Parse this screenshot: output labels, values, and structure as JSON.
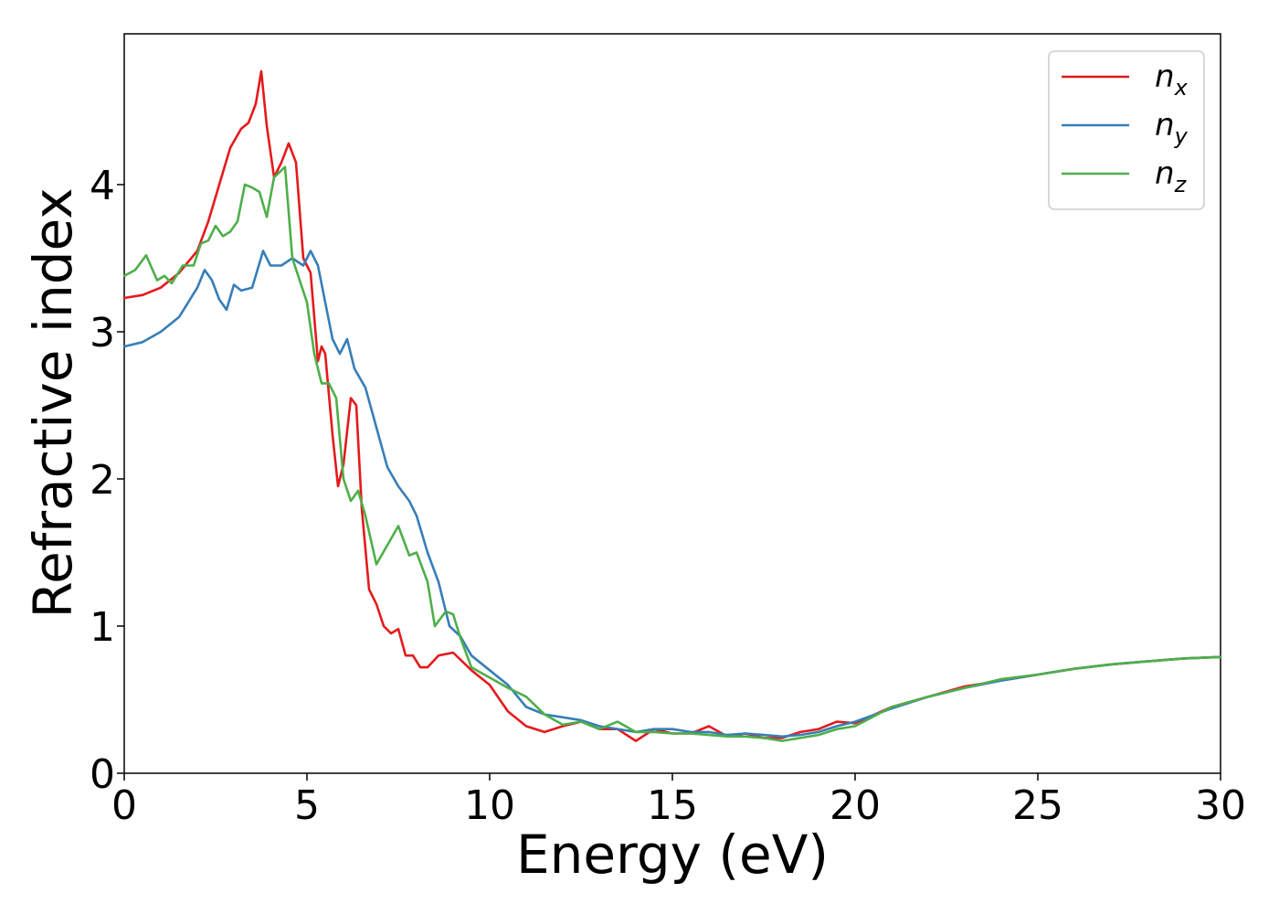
{
  "chart_data": {
    "type": "line",
    "title": "",
    "xlabel": "Energy (eV)",
    "ylabel": "Refractive index",
    "xlim": [
      0,
      30
    ],
    "ylim": [
      0,
      5
    ],
    "xticks": [
      0,
      5,
      10,
      15,
      20,
      25,
      30
    ],
    "yticks": [
      0,
      1,
      2,
      3,
      4
    ],
    "grid": false,
    "legend_position": "top-right",
    "series": [
      {
        "name": "n",
        "subscript": "x",
        "color": "#e41a1c",
        "x": [
          0,
          0.5,
          1,
          1.5,
          2,
          2.3,
          2.6,
          2.9,
          3.2,
          3.4,
          3.6,
          3.75,
          3.9,
          4.1,
          4.3,
          4.5,
          4.7,
          4.9,
          5.1,
          5.3,
          5.4,
          5.5,
          5.7,
          5.85,
          6.0,
          6.2,
          6.35,
          6.5,
          6.7,
          6.9,
          7.1,
          7.3,
          7.5,
          7.7,
          7.9,
          8.1,
          8.3,
          8.6,
          9,
          9.5,
          10,
          10.5,
          11,
          11.5,
          12,
          12.5,
          13,
          13.5,
          14,
          14.5,
          15,
          15.5,
          16,
          16.5,
          17,
          17.5,
          18,
          18.5,
          19,
          19.5,
          20,
          21,
          22,
          23,
          24,
          25,
          26,
          27,
          28,
          29,
          30
        ],
        "values": [
          3.23,
          3.25,
          3.3,
          3.4,
          3.55,
          3.75,
          4.0,
          4.25,
          4.38,
          4.42,
          4.55,
          4.77,
          4.4,
          4.05,
          4.15,
          4.28,
          4.15,
          3.5,
          3.4,
          2.8,
          2.9,
          2.85,
          2.3,
          1.95,
          2.1,
          2.55,
          2.5,
          1.8,
          1.25,
          1.15,
          1.0,
          0.95,
          0.98,
          0.8,
          0.8,
          0.72,
          0.72,
          0.8,
          0.82,
          0.7,
          0.6,
          0.42,
          0.32,
          0.28,
          0.32,
          0.35,
          0.3,
          0.3,
          0.22,
          0.3,
          0.27,
          0.27,
          0.32,
          0.25,
          0.27,
          0.24,
          0.24,
          0.28,
          0.3,
          0.35,
          0.34,
          0.45,
          0.52,
          0.59,
          0.63,
          0.67,
          0.71,
          0.74,
          0.76,
          0.78,
          0.79
        ]
      },
      {
        "name": "n",
        "subscript": "y",
        "color": "#377eb8",
        "x": [
          0,
          0.5,
          1,
          1.5,
          2,
          2.2,
          2.4,
          2.6,
          2.8,
          3.0,
          3.2,
          3.5,
          3.8,
          4.0,
          4.3,
          4.6,
          4.9,
          5.1,
          5.3,
          5.5,
          5.7,
          5.9,
          6.1,
          6.3,
          6.6,
          6.9,
          7.2,
          7.5,
          7.8,
          8.0,
          8.3,
          8.6,
          8.9,
          9.2,
          9.5,
          10,
          10.5,
          11,
          11.5,
          12,
          12.5,
          13,
          13.5,
          14,
          14.5,
          15,
          15.5,
          16,
          16.5,
          17,
          17.5,
          18,
          18.5,
          19,
          19.5,
          20,
          21,
          22,
          23,
          24,
          25,
          26,
          27,
          28,
          29,
          30
        ],
        "values": [
          2.9,
          2.93,
          3.0,
          3.1,
          3.3,
          3.42,
          3.35,
          3.22,
          3.15,
          3.32,
          3.28,
          3.3,
          3.55,
          3.45,
          3.45,
          3.5,
          3.45,
          3.55,
          3.45,
          3.2,
          2.95,
          2.85,
          2.95,
          2.75,
          2.62,
          2.35,
          2.08,
          1.95,
          1.85,
          1.75,
          1.5,
          1.3,
          1.0,
          0.93,
          0.8,
          0.7,
          0.6,
          0.45,
          0.4,
          0.38,
          0.36,
          0.32,
          0.3,
          0.28,
          0.3,
          0.3,
          0.28,
          0.28,
          0.26,
          0.27,
          0.26,
          0.25,
          0.26,
          0.28,
          0.32,
          0.35,
          0.44,
          0.52,
          0.58,
          0.63,
          0.67,
          0.71,
          0.74,
          0.76,
          0.78,
          0.79
        ]
      },
      {
        "name": "n",
        "subscript": "z",
        "color": "#4daf4a",
        "x": [
          0,
          0.3,
          0.6,
          0.9,
          1.1,
          1.3,
          1.6,
          1.9,
          2.1,
          2.3,
          2.5,
          2.7,
          2.9,
          3.1,
          3.3,
          3.5,
          3.7,
          3.9,
          4.1,
          4.4,
          4.6,
          4.8,
          5.0,
          5.2,
          5.4,
          5.6,
          5.8,
          6.0,
          6.2,
          6.4,
          6.6,
          6.9,
          7.2,
          7.5,
          7.8,
          8.0,
          8.3,
          8.5,
          8.8,
          9.0,
          9.2,
          9.5,
          10,
          10.5,
          11,
          11.5,
          12,
          12.5,
          13,
          13.5,
          14,
          14.5,
          15,
          15.5,
          16,
          16.5,
          17,
          17.5,
          18,
          18.5,
          19,
          19.5,
          20,
          21,
          22,
          23,
          24,
          25,
          26,
          27,
          28,
          29,
          30
        ],
        "values": [
          3.38,
          3.42,
          3.52,
          3.35,
          3.38,
          3.33,
          3.45,
          3.45,
          3.6,
          3.62,
          3.72,
          3.65,
          3.68,
          3.75,
          4.0,
          3.98,
          3.95,
          3.78,
          4.05,
          4.12,
          3.5,
          3.35,
          3.2,
          2.85,
          2.65,
          2.65,
          2.55,
          2.0,
          1.85,
          1.92,
          1.75,
          1.42,
          1.55,
          1.68,
          1.48,
          1.5,
          1.3,
          1.0,
          1.1,
          1.08,
          0.92,
          0.72,
          0.65,
          0.58,
          0.52,
          0.4,
          0.33,
          0.35,
          0.3,
          0.35,
          0.28,
          0.28,
          0.27,
          0.27,
          0.26,
          0.25,
          0.25,
          0.24,
          0.22,
          0.24,
          0.26,
          0.3,
          0.32,
          0.45,
          0.52,
          0.58,
          0.64,
          0.67,
          0.71,
          0.74,
          0.76,
          0.78,
          0.79
        ]
      }
    ]
  }
}
